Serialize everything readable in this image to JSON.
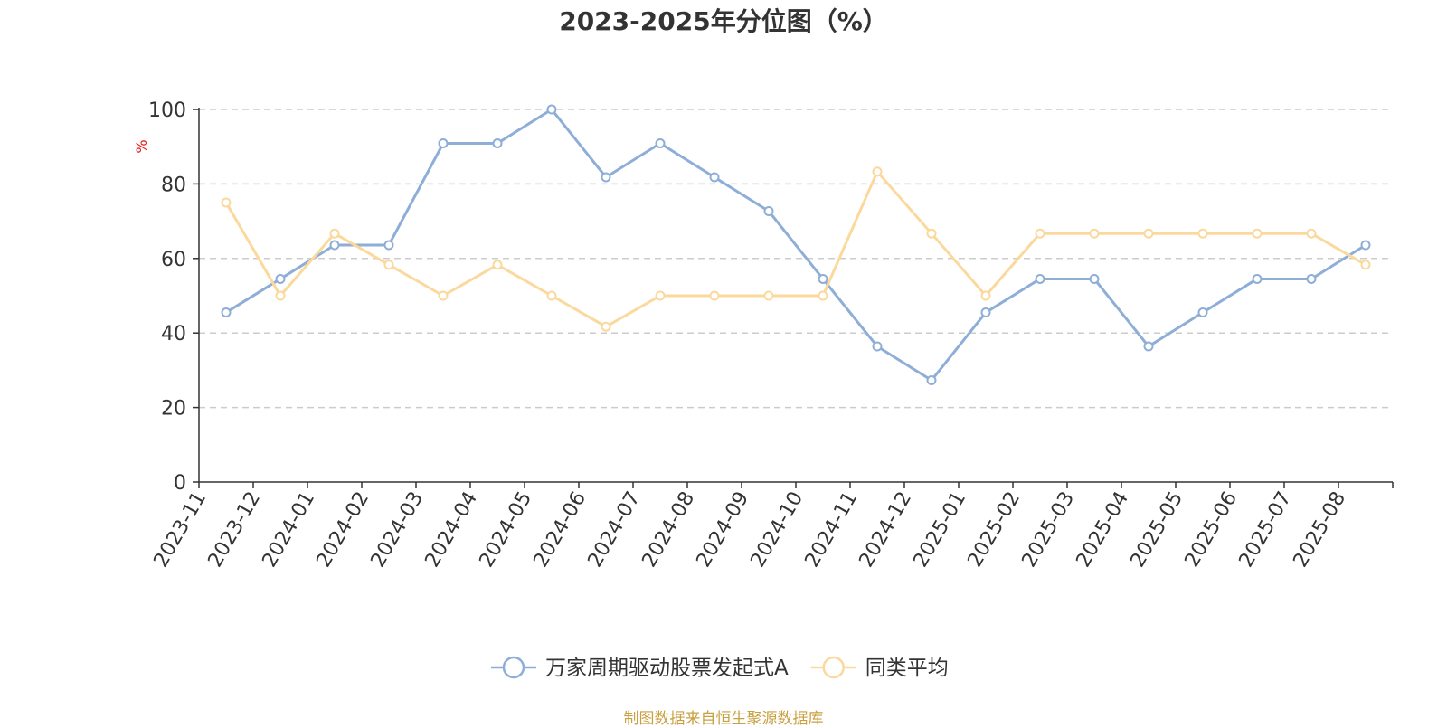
{
  "chart_data": {
    "type": "line",
    "title": "2023-2025年分位图（%）",
    "ylabel": "%",
    "xlabel": "",
    "ylim": [
      0,
      100
    ],
    "yticks": [
      0,
      20,
      40,
      60,
      80,
      100
    ],
    "grid": true,
    "legend_position": "bottom",
    "categories": [
      "2023-11",
      "2023-12",
      "2024-01",
      "2024-02",
      "2024-03",
      "2024-04",
      "2024-05",
      "2024-06",
      "2024-07",
      "2024-08",
      "2024-09",
      "2024-10",
      "2024-11",
      "2024-12",
      "2025-01",
      "2025-02",
      "2025-03",
      "2025-04",
      "2025-05",
      "2025-06",
      "2025-07",
      "2025-08"
    ],
    "series": [
      {
        "name": "万家周期驱动股票发起式A",
        "color": "#8eaed8",
        "values": [
          45.5,
          54.5,
          63.6,
          63.6,
          90.9,
          90.9,
          100,
          81.8,
          90.9,
          81.8,
          72.7,
          54.5,
          36.4,
          27.3,
          45.5,
          54.5,
          54.5,
          36.4,
          45.5,
          54.5,
          54.5,
          63.6
        ]
      },
      {
        "name": "同类平均",
        "color": "#fbd99c",
        "values": [
          75,
          50,
          66.7,
          58.3,
          50,
          58.3,
          50,
          41.7,
          50,
          50,
          50,
          50,
          83.3,
          66.7,
          50,
          66.7,
          66.7,
          66.7,
          66.7,
          66.7,
          66.7,
          58.3
        ]
      }
    ]
  },
  "source": "制图数据来自恒生聚源数据库"
}
